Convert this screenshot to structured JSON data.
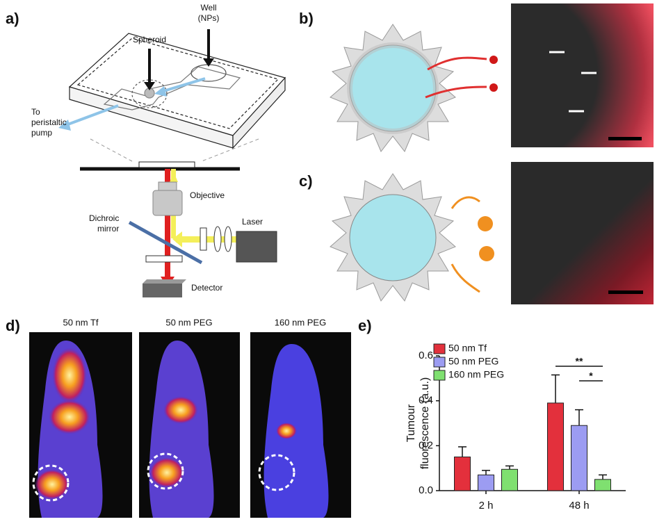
{
  "panel_labels": [
    "a)",
    "b)",
    "c)",
    "d)",
    "e)"
  ],
  "diagram_a": {
    "well": [
      "Well",
      "(NPs)"
    ],
    "spheroid": "Spheroid",
    "pump": [
      "To",
      "peristaltic",
      "pump"
    ],
    "objective": "Objective",
    "mirror": [
      "Dichroic",
      "mirror"
    ],
    "laser": "Laser",
    "detector": "Detector"
  },
  "panel_d": {
    "labels": [
      "50 nm Tf",
      "50 nm PEG",
      "160 nm PEG"
    ]
  },
  "chart_data": {
    "type": "bar",
    "ylabel": [
      "Tumour",
      "fluorescence (a.u.)"
    ],
    "categories": [
      "2 h",
      "48 h"
    ],
    "series": [
      {
        "name": "50 nm Tf",
        "color": "#e3303c",
        "values": [
          0.15,
          0.39
        ],
        "errors": [
          0.045,
          0.125
        ]
      },
      {
        "name": "50 nm PEG",
        "color": "#9c9cf2",
        "values": [
          0.07,
          0.29
        ],
        "errors": [
          0.02,
          0.07
        ]
      },
      {
        "name": "160 nm PEG",
        "color": "#7fe070",
        "values": [
          0.095,
          0.05
        ],
        "errors": [
          0.015,
          0.02
        ]
      }
    ],
    "ylim": [
      0,
      0.6
    ],
    "yticks": [
      {
        "value": 0,
        "label": "0.0"
      },
      0.2,
      0.4,
      0.6
    ],
    "annotations": [
      "**",
      "*"
    ]
  }
}
